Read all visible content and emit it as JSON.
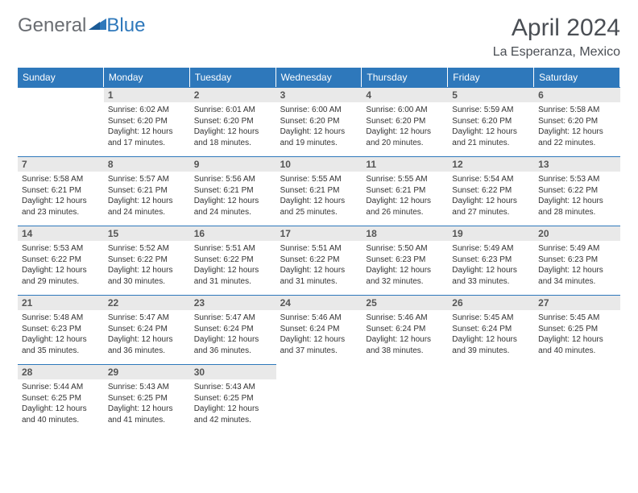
{
  "logo": {
    "part1": "General",
    "part2": "Blue"
  },
  "title": "April 2024",
  "location": "La Esperanza, Mexico",
  "colors": {
    "header_bg": "#2e78bb",
    "header_text": "#ffffff",
    "daynum_bg": "#e9e9e9",
    "cell_border": "#2e78bb",
    "text": "#333333",
    "title_text": "#4a4e54"
  },
  "day_headers": [
    "Sunday",
    "Monday",
    "Tuesday",
    "Wednesday",
    "Thursday",
    "Friday",
    "Saturday"
  ],
  "weeks": [
    [
      null,
      {
        "n": "1",
        "sr": "6:02 AM",
        "ss": "6:20 PM",
        "dl": "12 hours and 17 minutes."
      },
      {
        "n": "2",
        "sr": "6:01 AM",
        "ss": "6:20 PM",
        "dl": "12 hours and 18 minutes."
      },
      {
        "n": "3",
        "sr": "6:00 AM",
        "ss": "6:20 PM",
        "dl": "12 hours and 19 minutes."
      },
      {
        "n": "4",
        "sr": "6:00 AM",
        "ss": "6:20 PM",
        "dl": "12 hours and 20 minutes."
      },
      {
        "n": "5",
        "sr": "5:59 AM",
        "ss": "6:20 PM",
        "dl": "12 hours and 21 minutes."
      },
      {
        "n": "6",
        "sr": "5:58 AM",
        "ss": "6:20 PM",
        "dl": "12 hours and 22 minutes."
      }
    ],
    [
      {
        "n": "7",
        "sr": "5:58 AM",
        "ss": "6:21 PM",
        "dl": "12 hours and 23 minutes."
      },
      {
        "n": "8",
        "sr": "5:57 AM",
        "ss": "6:21 PM",
        "dl": "12 hours and 24 minutes."
      },
      {
        "n": "9",
        "sr": "5:56 AM",
        "ss": "6:21 PM",
        "dl": "12 hours and 24 minutes."
      },
      {
        "n": "10",
        "sr": "5:55 AM",
        "ss": "6:21 PM",
        "dl": "12 hours and 25 minutes."
      },
      {
        "n": "11",
        "sr": "5:55 AM",
        "ss": "6:21 PM",
        "dl": "12 hours and 26 minutes."
      },
      {
        "n": "12",
        "sr": "5:54 AM",
        "ss": "6:22 PM",
        "dl": "12 hours and 27 minutes."
      },
      {
        "n": "13",
        "sr": "5:53 AM",
        "ss": "6:22 PM",
        "dl": "12 hours and 28 minutes."
      }
    ],
    [
      {
        "n": "14",
        "sr": "5:53 AM",
        "ss": "6:22 PM",
        "dl": "12 hours and 29 minutes."
      },
      {
        "n": "15",
        "sr": "5:52 AM",
        "ss": "6:22 PM",
        "dl": "12 hours and 30 minutes."
      },
      {
        "n": "16",
        "sr": "5:51 AM",
        "ss": "6:22 PM",
        "dl": "12 hours and 31 minutes."
      },
      {
        "n": "17",
        "sr": "5:51 AM",
        "ss": "6:22 PM",
        "dl": "12 hours and 31 minutes."
      },
      {
        "n": "18",
        "sr": "5:50 AM",
        "ss": "6:23 PM",
        "dl": "12 hours and 32 minutes."
      },
      {
        "n": "19",
        "sr": "5:49 AM",
        "ss": "6:23 PM",
        "dl": "12 hours and 33 minutes."
      },
      {
        "n": "20",
        "sr": "5:49 AM",
        "ss": "6:23 PM",
        "dl": "12 hours and 34 minutes."
      }
    ],
    [
      {
        "n": "21",
        "sr": "5:48 AM",
        "ss": "6:23 PM",
        "dl": "12 hours and 35 minutes."
      },
      {
        "n": "22",
        "sr": "5:47 AM",
        "ss": "6:24 PM",
        "dl": "12 hours and 36 minutes."
      },
      {
        "n": "23",
        "sr": "5:47 AM",
        "ss": "6:24 PM",
        "dl": "12 hours and 36 minutes."
      },
      {
        "n": "24",
        "sr": "5:46 AM",
        "ss": "6:24 PM",
        "dl": "12 hours and 37 minutes."
      },
      {
        "n": "25",
        "sr": "5:46 AM",
        "ss": "6:24 PM",
        "dl": "12 hours and 38 minutes."
      },
      {
        "n": "26",
        "sr": "5:45 AM",
        "ss": "6:24 PM",
        "dl": "12 hours and 39 minutes."
      },
      {
        "n": "27",
        "sr": "5:45 AM",
        "ss": "6:25 PM",
        "dl": "12 hours and 40 minutes."
      }
    ],
    [
      {
        "n": "28",
        "sr": "5:44 AM",
        "ss": "6:25 PM",
        "dl": "12 hours and 40 minutes."
      },
      {
        "n": "29",
        "sr": "5:43 AM",
        "ss": "6:25 PM",
        "dl": "12 hours and 41 minutes."
      },
      {
        "n": "30",
        "sr": "5:43 AM",
        "ss": "6:25 PM",
        "dl": "12 hours and 42 minutes."
      },
      null,
      null,
      null,
      null
    ]
  ],
  "labels": {
    "sunrise": "Sunrise:",
    "sunset": "Sunset:",
    "daylight": "Daylight:"
  }
}
